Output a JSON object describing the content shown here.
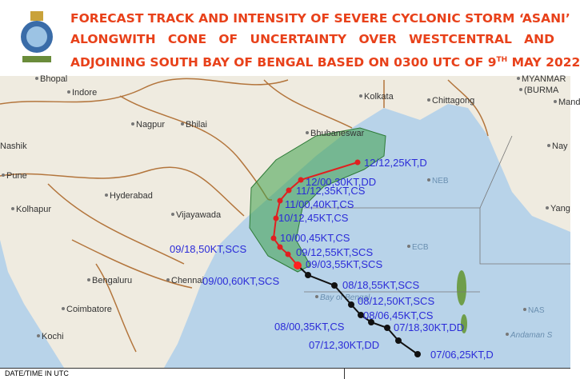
{
  "header": {
    "title_lines": [
      "FORECAST TRACK AND INTENSITY OF SEVERE CYCLONIC STORM ‘ASANI’",
      "ALONGWITH CONE OF UNCERTAINTY OVER WESTCENTRAL AND",
      "ADJOINING SOUTH BAY OF BENGAL BASED ON 0300 UTC OF 9"
    ],
    "title_superscript": "TH",
    "title_end": " MAY 2022"
  },
  "map": {
    "places": [
      "Bhopal",
      "Indore",
      "Nagpur",
      "Bhilai",
      "Nashik",
      "Pune",
      "Hyderabad",
      "Kolhapur",
      "Vijayawada",
      "Bengaluru",
      "Chennai",
      "Coimbatore",
      "Kochi",
      "Kolkata",
      "Chittagong",
      "MYANMAR",
      "(BURMA",
      "Mand",
      "Nay",
      "Yang",
      "Bhubaneswar",
      "NEB",
      "ECB",
      "NAS",
      "Bay of Bengal",
      "Andaman S"
    ]
  },
  "track": {
    "observed": [
      "07/06,25KT,D",
      "07/12,30KT,DD",
      "07/18,30KT,DD",
      "08/00,35KT,CS",
      "08/06,45KT,CS",
      "08/12,50KT,SCS",
      "08/18,55KT,SCS",
      "09/00,60KT,SCS",
      "09/03,55KT,SCS"
    ],
    "forecast": [
      "09/12,55KT,SCS",
      "09/18,50KT,SCS",
      "10/00,45KT,CS",
      "10/12,45KT,CS",
      "11/00,40KT,CS",
      "11/12,35KT,CS",
      "12/00,30KT,DD",
      "12/12,25KT,D"
    ]
  },
  "footer": {
    "text": "DATE/TIME IN UTC"
  }
}
